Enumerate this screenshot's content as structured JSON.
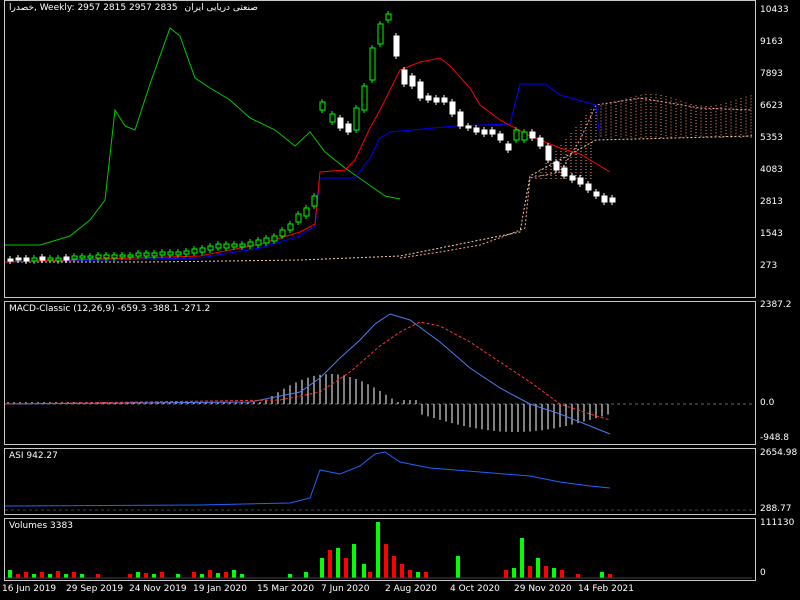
{
  "header": {
    "symbol": "خصدرا",
    "timeframe": "Weekly",
    "ohlc": "2957 2815 2957 2835",
    "company": "صنعتی دریایی ایران"
  },
  "panes": {
    "price": {
      "yticks": [
        "10433",
        "9163",
        "7893",
        "6623",
        "5353",
        "4083",
        "2813",
        "1543",
        "273"
      ]
    },
    "macd": {
      "label": "MACD-Classic (12,26,9) -659.3 -388.1 -271.2",
      "yticks": [
        "2387.2",
        "0.0",
        "-948.8"
      ]
    },
    "asi": {
      "label": "ASI 942.27",
      "yticks": [
        "2654.98",
        "288.77"
      ]
    },
    "volumes": {
      "label": "Volumes 3383",
      "yticks": [
        "111130",
        "0"
      ]
    }
  },
  "xaxis": [
    "16 Jun 2019",
    "29 Sep 2019",
    "24 Nov 2019",
    "19 Jan 2020",
    "15 Mar 2020",
    "7 Jun 2020",
    "2 Aug 2020",
    "4 Oct 2020",
    "29 Nov 2020",
    "14 Feb 2021"
  ],
  "colors": {
    "background": "#000000",
    "bull": "#00ff00",
    "bear": "#ff0000",
    "tenkan": "#ff0000",
    "kijun": "#0000ff",
    "chikou": "#00c800",
    "macd_line": "#4b7cf0",
    "signal_line": "#ff3030",
    "asi_line": "#1e64ff"
  }
}
